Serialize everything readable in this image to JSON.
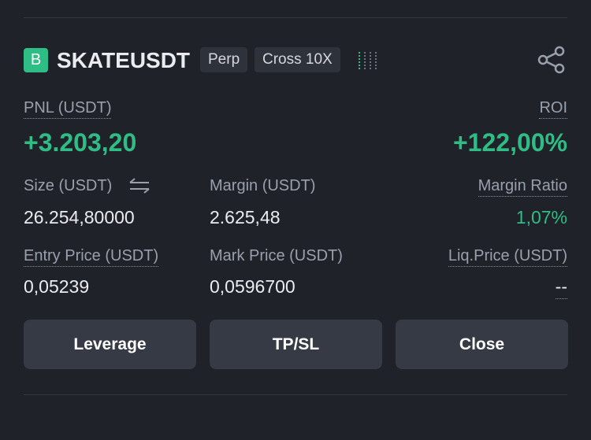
{
  "header": {
    "badge": "B",
    "symbol": "SKATEUSDT",
    "tags": [
      "Perp",
      "Cross 10X"
    ]
  },
  "pnl": {
    "label": "PNL (USDT)",
    "value": "+3.203,20"
  },
  "roi": {
    "label": "ROI",
    "value": "+122,00%"
  },
  "fields": [
    {
      "label": "Size (USDT)",
      "value": "26.254,80000"
    },
    {
      "label": "Margin (USDT)",
      "value": "2.625,48"
    },
    {
      "label": "Margin Ratio",
      "value": "1,07%"
    },
    {
      "label": "Entry Price (USDT)",
      "value": "0,05239"
    },
    {
      "label": "Mark Price (USDT)",
      "value": "0,0596700"
    },
    {
      "label": "Liq.Price (USDT)",
      "value": "--"
    }
  ],
  "buttons": [
    "Leverage",
    "TP/SL",
    "Close"
  ]
}
